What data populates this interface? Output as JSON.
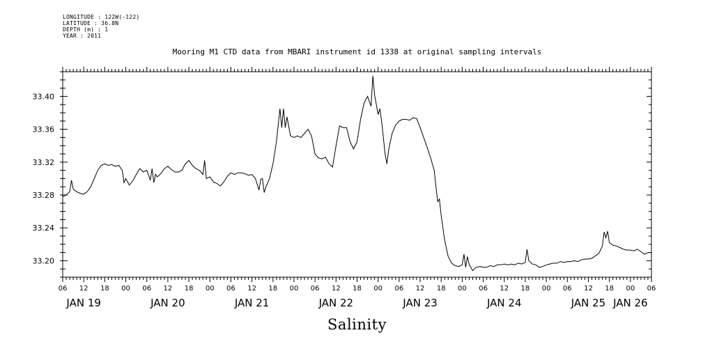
{
  "meta": {
    "longitude": "LONGITUDE : 122W(-122)",
    "latitude": "LATITUDE : 36.8N",
    "depth": "DEPTH (m) : 1",
    "year": "YEAR : 2011"
  },
  "chart_data": {
    "type": "line",
    "title": "Mooring M1 CTD data from MBARI instrument id 1338 at original sampling intervals",
    "xlabel": "Salinity",
    "ylabel": "",
    "x_range_hours": [
      6,
      174
    ],
    "ylim": [
      33.18,
      33.43
    ],
    "y_ticks": [
      33.2,
      33.24,
      33.28,
      33.32,
      33.36,
      33.4
    ],
    "y_tick_labels": [
      "33.20",
      "33.24",
      "33.28",
      "33.32",
      "33.36",
      "33.40"
    ],
    "x_hour_labels": [
      "06",
      "12",
      "18",
      "00",
      "06",
      "12",
      "18",
      "00",
      "06",
      "12",
      "18",
      "00",
      "06",
      "12",
      "18",
      "00",
      "06",
      "12",
      "18",
      "00",
      "06",
      "12",
      "18",
      "00",
      "06",
      "12",
      "18",
      "00",
      "06"
    ],
    "day_labels": [
      {
        "label": "JAN 19",
        "hour": 12
      },
      {
        "label": "JAN 20",
        "hour": 36
      },
      {
        "label": "JAN 21",
        "hour": 60
      },
      {
        "label": "JAN 22",
        "hour": 84
      },
      {
        "label": "JAN 23",
        "hour": 108
      },
      {
        "label": "JAN 24",
        "hour": 132
      },
      {
        "label": "JAN 25",
        "hour": 156
      },
      {
        "label": "JAN 26",
        "hour": 168
      }
    ],
    "series": [
      {
        "points": [
          [
            6,
            33.278
          ],
          [
            7,
            33.28
          ],
          [
            8,
            33.284
          ],
          [
            8.5,
            33.298
          ],
          [
            9,
            33.287
          ],
          [
            10,
            33.284
          ],
          [
            11,
            33.282
          ],
          [
            12,
            33.281
          ],
          [
            13,
            33.284
          ],
          [
            14,
            33.29
          ],
          [
            15,
            33.3
          ],
          [
            16,
            33.31
          ],
          [
            17,
            33.316
          ],
          [
            18,
            33.318
          ],
          [
            19,
            33.316
          ],
          [
            20,
            33.317
          ],
          [
            21,
            33.315
          ],
          [
            22,
            33.316
          ],
          [
            23,
            33.31
          ],
          [
            23.5,
            33.295
          ],
          [
            24,
            33.3
          ],
          [
            25,
            33.292
          ],
          [
            26,
            33.297
          ],
          [
            27,
            33.305
          ],
          [
            28,
            33.312
          ],
          [
            29,
            33.308
          ],
          [
            30,
            33.31
          ],
          [
            31,
            33.298
          ],
          [
            31.5,
            33.312
          ],
          [
            32,
            33.295
          ],
          [
            32.5,
            33.305
          ],
          [
            33,
            33.302
          ],
          [
            34,
            33.306
          ],
          [
            35,
            33.312
          ],
          [
            36,
            33.315
          ],
          [
            37,
            33.311
          ],
          [
            38,
            33.308
          ],
          [
            39,
            33.308
          ],
          [
            40,
            33.31
          ],
          [
            41,
            33.318
          ],
          [
            42,
            33.322
          ],
          [
            43,
            33.316
          ],
          [
            44,
            33.312
          ],
          [
            45,
            33.31
          ],
          [
            46,
            33.305
          ],
          [
            46.5,
            33.322
          ],
          [
            47,
            33.3
          ],
          [
            48,
            33.302
          ],
          [
            49,
            33.296
          ],
          [
            50,
            33.294
          ],
          [
            51,
            33.291
          ],
          [
            52,
            33.296
          ],
          [
            53,
            33.303
          ],
          [
            54,
            33.307
          ],
          [
            55,
            33.305
          ],
          [
            56,
            33.307
          ],
          [
            57,
            33.307
          ],
          [
            58,
            33.306
          ],
          [
            59,
            33.304
          ],
          [
            60,
            33.305
          ],
          [
            61,
            33.3
          ],
          [
            62,
            33.286
          ],
          [
            62.5,
            33.299
          ],
          [
            63,
            33.3
          ],
          [
            63.5,
            33.283
          ],
          [
            64,
            33.29
          ],
          [
            65,
            33.3
          ],
          [
            66,
            33.318
          ],
          [
            67,
            33.345
          ],
          [
            68,
            33.385
          ],
          [
            68.5,
            33.362
          ],
          [
            69,
            33.385
          ],
          [
            69.5,
            33.362
          ],
          [
            70,
            33.375
          ],
          [
            71,
            33.352
          ],
          [
            72,
            33.35
          ],
          [
            73,
            33.352
          ],
          [
            74,
            33.35
          ],
          [
            75,
            33.355
          ],
          [
            76,
            33.36
          ],
          [
            77,
            33.352
          ],
          [
            78,
            33.33
          ],
          [
            79,
            33.325
          ],
          [
            80,
            33.324
          ],
          [
            81,
            33.326
          ],
          [
            82,
            33.318
          ],
          [
            83,
            33.314
          ],
          [
            84,
            33.34
          ],
          [
            85,
            33.364
          ],
          [
            86,
            33.362
          ],
          [
            87,
            33.362
          ],
          [
            88,
            33.345
          ],
          [
            89,
            33.336
          ],
          [
            90,
            33.345
          ],
          [
            91,
            33.372
          ],
          [
            92,
            33.392
          ],
          [
            93,
            33.4
          ],
          [
            94,
            33.388
          ],
          [
            94.5,
            33.425
          ],
          [
            95,
            33.402
          ],
          [
            96,
            33.378
          ],
          [
            96.5,
            33.385
          ],
          [
            97,
            33.37
          ],
          [
            98,
            33.33
          ],
          [
            98.5,
            33.318
          ],
          [
            99,
            33.335
          ],
          [
            100,
            33.355
          ],
          [
            101,
            33.365
          ],
          [
            102,
            33.37
          ],
          [
            103,
            33.372
          ],
          [
            104,
            33.372
          ],
          [
            105,
            33.371
          ],
          [
            106,
            33.374
          ],
          [
            107,
            33.373
          ],
          [
            108,
            33.362
          ],
          [
            109,
            33.35
          ],
          [
            110,
            33.338
          ],
          [
            111,
            33.325
          ],
          [
            112,
            33.31
          ],
          [
            112.5,
            33.29
          ],
          [
            113,
            33.272
          ],
          [
            113.5,
            33.275
          ],
          [
            114,
            33.255
          ],
          [
            115,
            33.225
          ],
          [
            116,
            33.205
          ],
          [
            117,
            33.197
          ],
          [
            118,
            33.194
          ],
          [
            119,
            33.193
          ],
          [
            120,
            33.195
          ],
          [
            120.5,
            33.208
          ],
          [
            121,
            33.192
          ],
          [
            121.5,
            33.205
          ],
          [
            122,
            33.195
          ],
          [
            123,
            33.188
          ],
          [
            124,
            33.192
          ],
          [
            125,
            33.193
          ],
          [
            126,
            33.192
          ],
          [
            127,
            33.192
          ],
          [
            128,
            33.194
          ],
          [
            129,
            33.193
          ],
          [
            130,
            33.195
          ],
          [
            131,
            33.195
          ],
          [
            132,
            33.196
          ],
          [
            133,
            33.195
          ],
          [
            134,
            33.196
          ],
          [
            135,
            33.195
          ],
          [
            136,
            33.197
          ],
          [
            137,
            33.196
          ],
          [
            138,
            33.198
          ],
          [
            138.5,
            33.214
          ],
          [
            139,
            33.2
          ],
          [
            140,
            33.196
          ],
          [
            141,
            33.195
          ],
          [
            142,
            33.192
          ],
          [
            143,
            33.193
          ],
          [
            144,
            33.195
          ],
          [
            145,
            33.196
          ],
          [
            146,
            33.197
          ],
          [
            147,
            33.197
          ],
          [
            148,
            33.199
          ],
          [
            149,
            33.198
          ],
          [
            150,
            33.199
          ],
          [
            151,
            33.199
          ],
          [
            152,
            33.2
          ],
          [
            153,
            33.199
          ],
          [
            154,
            33.201
          ],
          [
            155,
            33.202
          ],
          [
            156,
            33.202
          ],
          [
            157,
            33.203
          ],
          [
            158,
            33.206
          ],
          [
            159,
            33.209
          ],
          [
            160,
            33.218
          ],
          [
            160.5,
            33.235
          ],
          [
            161,
            33.228
          ],
          [
            161.5,
            33.236
          ],
          [
            162,
            33.222
          ],
          [
            163,
            33.219
          ],
          [
            164,
            33.218
          ],
          [
            165,
            33.216
          ],
          [
            166,
            33.214
          ],
          [
            167,
            33.213
          ],
          [
            168,
            33.213
          ],
          [
            169,
            33.212
          ],
          [
            170,
            33.214
          ],
          [
            171,
            33.211
          ],
          [
            172,
            33.208
          ],
          [
            173,
            33.21
          ],
          [
            174,
            33.21
          ]
        ]
      }
    ]
  }
}
